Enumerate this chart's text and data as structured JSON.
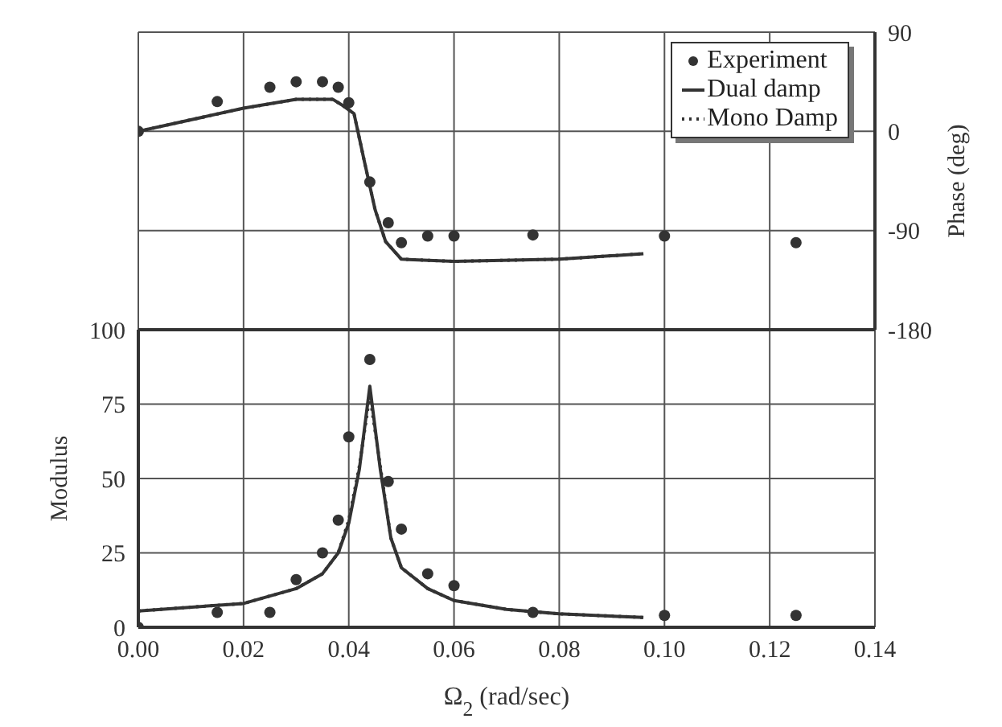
{
  "chart_data": [
    {
      "type": "line",
      "xlim": [
        0,
        0.14
      ],
      "xticks": [
        0,
        0.02,
        0.04,
        0.06,
        0.08,
        0.1,
        0.12,
        0.14
      ],
      "ylim": [
        -180,
        90
      ],
      "yticks": [
        90,
        0,
        -90,
        -180
      ],
      "ylabel": "Phase (deg)",
      "tick_labels": "y",
      "grid": true,
      "legend": "top right",
      "series": [
        {
          "name": "Experiment",
          "type": "scatter",
          "marker": "circle",
          "color": "#333333",
          "x": [
            0,
            0.015,
            0.025,
            0.03,
            0.035,
            0.038,
            0.04,
            0.044,
            0.0475,
            0.05,
            0.055,
            0.06,
            0.075,
            0.1,
            0.125
          ],
          "values": [
            0,
            27,
            40,
            45,
            45,
            40,
            26,
            -46,
            -83,
            -101,
            -95,
            -95,
            -94,
            -95,
            -101
          ]
        },
        {
          "name": "Dual damp",
          "line_style": "solid",
          "color": "#333333",
          "x": [
            0,
            0.02,
            0.03,
            0.037,
            0.039,
            0.041,
            0.043,
            0.045,
            0.047,
            0.05,
            0.06,
            0.08,
            0.096
          ],
          "values": [
            0,
            21,
            29,
            29,
            23,
            16,
            -28,
            -71,
            -100,
            -116,
            -118,
            -116,
            -111
          ]
        },
        {
          "name": "Mono Damp",
          "line_style": "dotted",
          "color": "#333333",
          "x": [
            0,
            0.02,
            0.03,
            0.037,
            0.039,
            0.041,
            0.043,
            0.045,
            0.047,
            0.05,
            0.06,
            0.08,
            0.096
          ],
          "values": [
            0,
            21,
            29,
            29,
            23,
            16,
            -28,
            -71,
            -100,
            -116,
            -118,
            -116,
            -111
          ]
        }
      ]
    },
    {
      "type": "line",
      "xlim": [
        0,
        0.14
      ],
      "xticks": [
        {
          "value": 0,
          "label": "0.00"
        },
        {
          "value": 0.02,
          "label": "0.02"
        },
        {
          "value": 0.04,
          "label": "0.04"
        },
        {
          "value": 0.06,
          "label": "0.06"
        },
        {
          "value": 0.08,
          "label": "0.08"
        },
        {
          "value": 0.1,
          "label": "0.10"
        },
        {
          "value": 0.12,
          "label": "0.12"
        },
        {
          "value": 0.14,
          "label": "0.14"
        }
      ],
      "ylim": [
        0,
        100
      ],
      "yticks": [
        0,
        25,
        50,
        75,
        100
      ],
      "xlabel": "Ω$_{2}$ (rad/sec)",
      "ylabel": "Modulus",
      "grid": true,
      "series": [
        {
          "type": "scatter",
          "marker": "circle",
          "color": "#333333",
          "x": [
            0,
            0.015,
            0.025,
            0.03,
            0.035,
            0.038,
            0.04,
            0.044,
            0.0475,
            0.05,
            0.055,
            0.06,
            0.075,
            0.1,
            0.125
          ],
          "values": [
            0,
            5,
            5,
            16,
            25,
            36,
            64,
            90,
            49,
            33,
            18,
            14,
            5,
            4,
            4
          ]
        },
        {
          "line_style": "solid",
          "color": "#333333",
          "x": [
            0,
            0.02,
            0.03,
            0.035,
            0.038,
            0.04,
            0.042,
            0.044,
            0.046,
            0.048,
            0.05,
            0.055,
            0.06,
            0.07,
            0.08,
            0.096
          ],
          "values": [
            5.5,
            8,
            13,
            18,
            25,
            35,
            53,
            81,
            53,
            30,
            20,
            13,
            9,
            6,
            4.5,
            3.3
          ]
        },
        {
          "line_style": "dotted",
          "color": "#333333",
          "x": [
            0,
            0.02,
            0.03,
            0.035,
            0.038,
            0.04,
            0.042,
            0.044,
            0.046,
            0.048,
            0.05,
            0.055,
            0.06,
            0.07,
            0.08,
            0.096
          ],
          "values": [
            5.5,
            8,
            13,
            18,
            25,
            36,
            54,
            78,
            54,
            30,
            20,
            13,
            9,
            6,
            4.5,
            3.3
          ]
        }
      ]
    }
  ]
}
